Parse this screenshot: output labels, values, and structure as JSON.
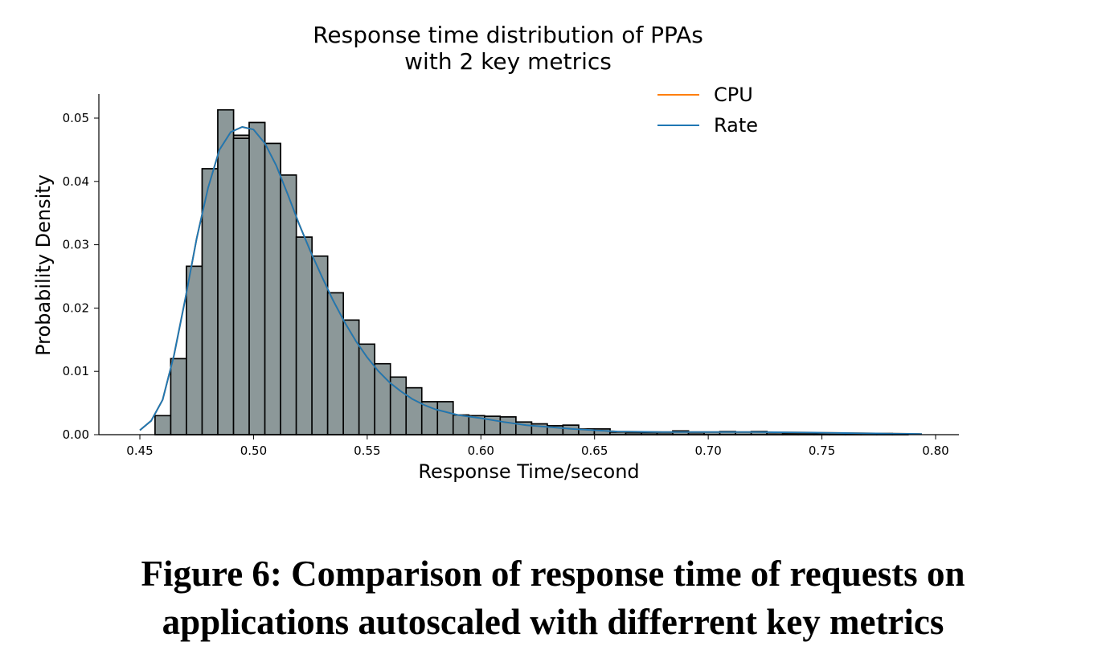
{
  "chart_data": {
    "type": "histogram",
    "title": [
      "Response time distribution of PPAs",
      "with 2 key metrics"
    ],
    "xlabel": "Response Time/second",
    "ylabel": "Probability Density",
    "xlim": [
      0.43,
      0.81
    ],
    "ylim": [
      0,
      0.054
    ],
    "xticks": [
      0.45,
      0.5,
      0.55,
      0.6,
      0.65,
      0.7,
      0.75,
      0.8
    ],
    "xtick_labels": [
      "0.45",
      "0.50",
      "0.55",
      "0.60",
      "0.65",
      "0.70",
      "0.75",
      "0.80"
    ],
    "yticks": [
      0.0,
      0.01,
      0.02,
      0.03,
      0.04,
      0.05
    ],
    "ytick_labels": [
      "0.00",
      "0.01",
      "0.02",
      "0.03",
      "0.04",
      "0.05"
    ],
    "legend_position": "top-right",
    "bar_color": "#8c9899",
    "bin_width": 0.0069,
    "bins": {
      "left_edges": [
        0.4567,
        0.4636,
        0.4705,
        0.4774,
        0.4843,
        0.4912,
        0.4981,
        0.505,
        0.5119,
        0.5188,
        0.5257,
        0.5326,
        0.5395,
        0.5464,
        0.5533,
        0.5602,
        0.5671,
        0.574,
        0.5809,
        0.5878,
        0.5947,
        0.6016,
        0.6085,
        0.6154,
        0.6223,
        0.6292,
        0.6361,
        0.643,
        0.6499,
        0.6568,
        0.6637,
        0.6706,
        0.6775,
        0.6844,
        0.6913,
        0.6982,
        0.7051,
        0.712,
        0.7189,
        0.7258,
        0.7327,
        0.7396,
        0.7465,
        0.7534,
        0.7603,
        0.7672,
        0.7741,
        0.781
      ],
      "cpu": [
        0.003,
        0.012,
        0.0266,
        0.042,
        0.0513,
        0.0473,
        0.0493,
        0.046,
        0.041,
        0.0312,
        0.0282,
        0.0224,
        0.0181,
        0.0143,
        0.0112,
        0.0091,
        0.0074,
        0.0052,
        0.0052,
        0.0031,
        0.003,
        0.0029,
        0.0028,
        0.002,
        0.0017,
        0.0014,
        0.0015,
        0.0009,
        0.0009,
        0.0004,
        0.0003,
        0.0003,
        0.0003,
        0.0006,
        0.0003,
        0.0004,
        0.0005,
        0.0004,
        0.0005,
        0.0003,
        0.0002,
        0.0002,
        0.0002,
        0.0002,
        0.0002,
        0.0002,
        0.0002,
        0.0001
      ],
      "rate": [
        0.003,
        0.012,
        0.0266,
        0.042,
        0.0513,
        0.0468,
        0.0493,
        0.046,
        0.041,
        0.0312,
        0.0282,
        0.0224,
        0.0181,
        0.0143,
        0.0112,
        0.0091,
        0.0074,
        0.0052,
        0.0052,
        0.0031,
        0.003,
        0.0029,
        0.0028,
        0.002,
        0.0017,
        0.0014,
        0.0015,
        0.0009,
        0.0009,
        0.0004,
        0.0003,
        0.0003,
        0.0003,
        0.0006,
        0.0003,
        0.0004,
        0.0005,
        0.0004,
        0.0005,
        0.0003,
        0.0002,
        0.0002,
        0.0002,
        0.0002,
        0.0002,
        0.0002,
        0.0002,
        0.0001
      ]
    },
    "series": [
      {
        "name": "CPU",
        "color": "#ff7f0e",
        "kde": {
          "x": [
            0.45,
            0.455,
            0.46,
            0.465,
            0.47,
            0.475,
            0.48,
            0.485,
            0.49,
            0.495,
            0.5,
            0.505,
            0.51,
            0.515,
            0.52,
            0.525,
            0.53,
            0.535,
            0.54,
            0.545,
            0.55,
            0.555,
            0.56,
            0.565,
            0.57,
            0.575,
            0.58,
            0.59,
            0.6,
            0.61,
            0.62,
            0.63,
            0.64,
            0.65,
            0.66,
            0.68,
            0.7,
            0.72,
            0.75,
            0.77,
            0.794
          ],
          "y": [
            0.0007,
            0.0022,
            0.0055,
            0.0125,
            0.0215,
            0.031,
            0.039,
            0.045,
            0.0478,
            0.0486,
            0.0482,
            0.046,
            0.0425,
            0.038,
            0.0333,
            0.029,
            0.025,
            0.0212,
            0.0178,
            0.0148,
            0.0122,
            0.01,
            0.0082,
            0.0068,
            0.0056,
            0.0047,
            0.004,
            0.0031,
            0.0026,
            0.002,
            0.0015,
            0.0012,
            0.0009,
            0.0007,
            0.0005,
            0.0004,
            0.0004,
            0.0004,
            0.0003,
            0.0002,
            0.0001
          ]
        }
      },
      {
        "name": "Rate",
        "color": "#1f77b4",
        "kde": {
          "x": [
            0.45,
            0.455,
            0.46,
            0.465,
            0.47,
            0.475,
            0.48,
            0.485,
            0.49,
            0.495,
            0.5,
            0.505,
            0.51,
            0.515,
            0.52,
            0.525,
            0.53,
            0.535,
            0.54,
            0.545,
            0.55,
            0.555,
            0.56,
            0.565,
            0.57,
            0.575,
            0.58,
            0.59,
            0.6,
            0.61,
            0.62,
            0.63,
            0.64,
            0.65,
            0.66,
            0.68,
            0.7,
            0.72,
            0.75,
            0.77,
            0.794
          ],
          "y": [
            0.0007,
            0.0022,
            0.0055,
            0.0125,
            0.0215,
            0.031,
            0.039,
            0.045,
            0.0478,
            0.0486,
            0.0482,
            0.046,
            0.0425,
            0.038,
            0.0333,
            0.029,
            0.025,
            0.0212,
            0.0178,
            0.0148,
            0.0122,
            0.01,
            0.0082,
            0.0068,
            0.0056,
            0.0047,
            0.004,
            0.0031,
            0.0026,
            0.002,
            0.0015,
            0.0012,
            0.0009,
            0.0007,
            0.0005,
            0.0004,
            0.0004,
            0.0004,
            0.0003,
            0.0002,
            0.0001
          ]
        }
      }
    ]
  },
  "caption": {
    "line1": "Figure 6: Comparison of response time of requests on",
    "line2": "applications autoscaled with differrent key metrics"
  }
}
